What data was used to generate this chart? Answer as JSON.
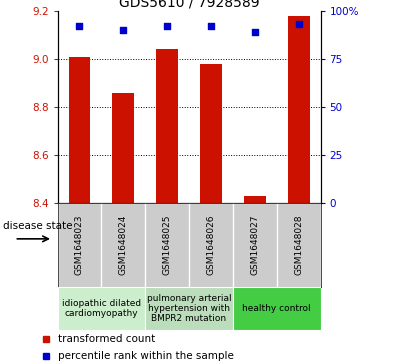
{
  "title": "GDS5610 / 7928589",
  "samples": [
    "GSM1648023",
    "GSM1648024",
    "GSM1648025",
    "GSM1648026",
    "GSM1648027",
    "GSM1648028"
  ],
  "bar_values": [
    9.01,
    8.86,
    9.04,
    8.98,
    8.43,
    9.18
  ],
  "percentile_values": [
    92,
    90,
    92,
    92,
    89,
    93
  ],
  "bar_color": "#cc1100",
  "dot_color": "#0000cc",
  "ylim_left": [
    8.4,
    9.2
  ],
  "ylim_right": [
    0,
    100
  ],
  "yticks_left": [
    8.4,
    8.6,
    8.8,
    9.0,
    9.2
  ],
  "yticks_right": [
    0,
    25,
    50,
    75,
    100
  ],
  "grid_values": [
    8.6,
    8.8,
    9.0
  ],
  "disease_groups": [
    {
      "label": "idiopathic dilated\ncardiomyopathy",
      "samples": [
        0,
        1
      ],
      "color": "#cceecc"
    },
    {
      "label": "pulmonary arterial\nhypertension with\nBMPR2 mutation",
      "samples": [
        2,
        3
      ],
      "color": "#bbddbb"
    },
    {
      "label": "healthy control",
      "samples": [
        4,
        5
      ],
      "color": "#44cc44"
    }
  ],
  "legend_bar_label": "transformed count",
  "legend_dot_label": "percentile rank within the sample",
  "disease_state_label": "disease state",
  "bg_color": "#ffffff",
  "plot_bg_color": "#ffffff",
  "tick_label_color_left": "#cc1100",
  "tick_label_color_right": "#0000cc",
  "xlabel_area_color": "#cccccc",
  "bar_width": 0.5
}
